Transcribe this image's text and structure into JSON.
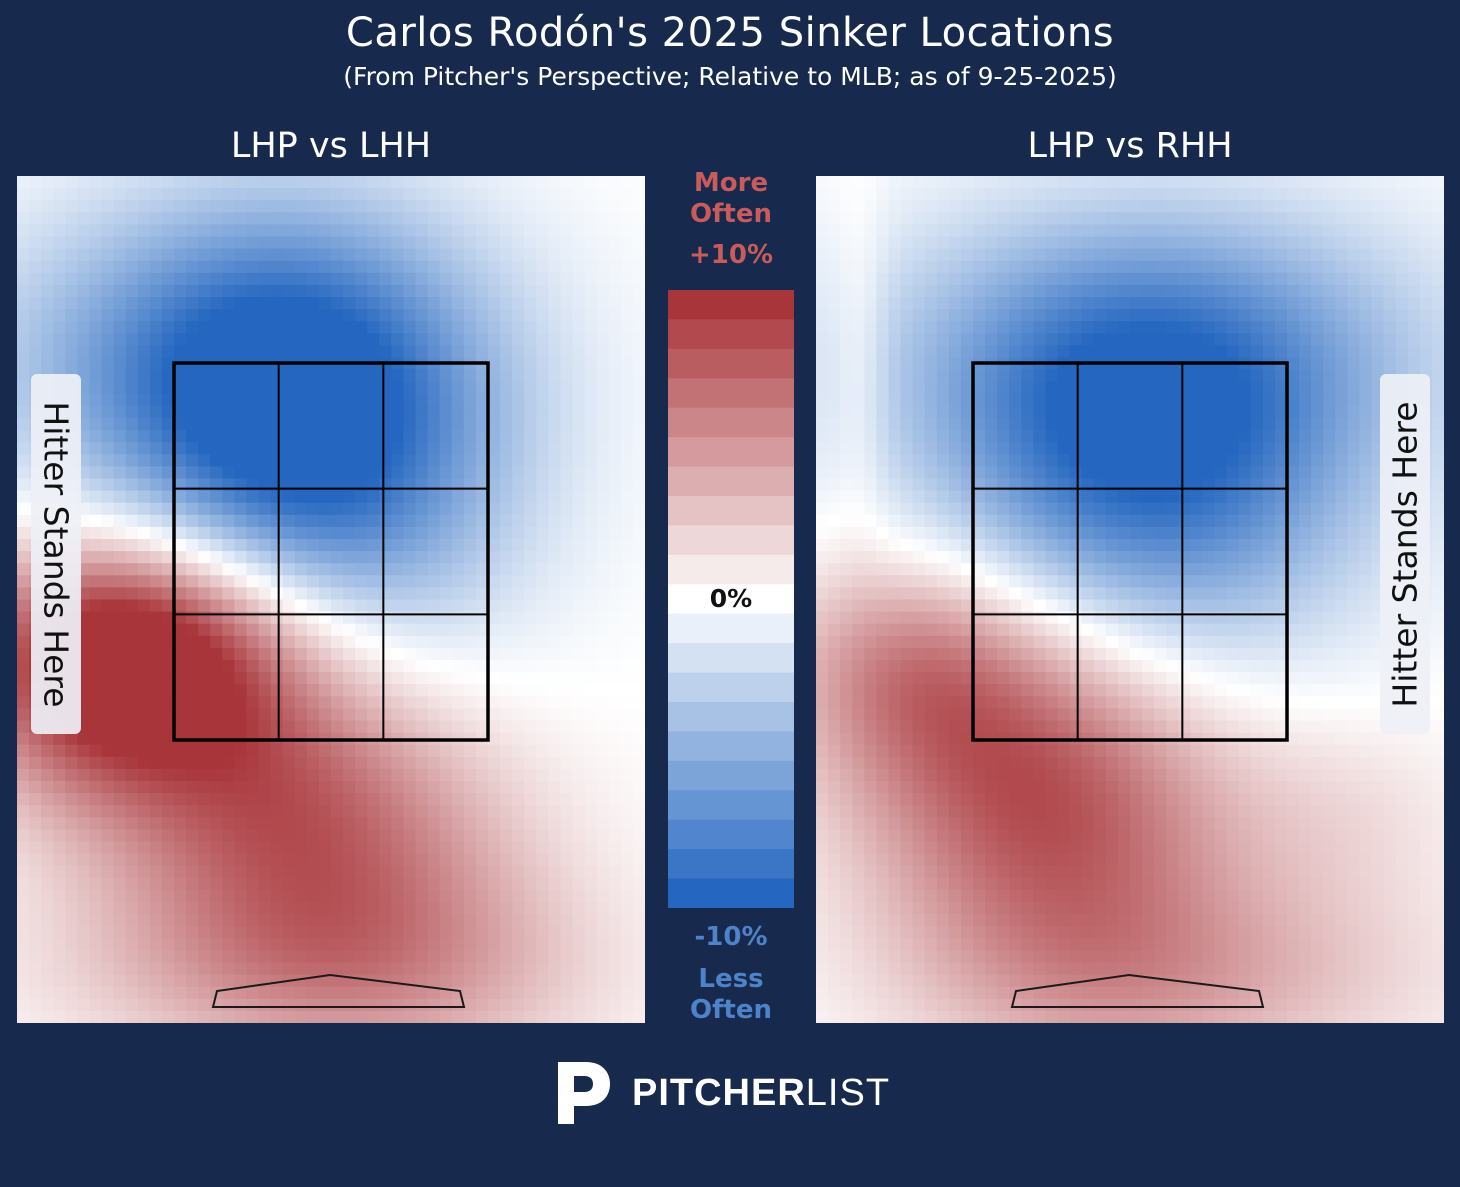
{
  "title": "Carlos Rodón's 2025 Sinker Locations",
  "subtitle": "(From Pitcher's Perspective; Relative to MLB; as of 9-25-2025)",
  "panels": [
    {
      "title": "LHP vs LHH",
      "hitter_label": "Hitter Stands Here",
      "hitter_side": "left"
    },
    {
      "title": "LHP vs RHH",
      "hitter_label": "Hitter Stands Here",
      "hitter_side": "right"
    }
  ],
  "legend": {
    "more_line1": "More",
    "more_line2": "Often",
    "max_label": "+10%",
    "mid_label": "0%",
    "min_label": "-10%",
    "less_line1": "Less",
    "less_line2": "Often",
    "range": [
      -10,
      10
    ],
    "colors": {
      "positive": "#a8353a",
      "neutral": "#ffffff",
      "negative": "#2567c0"
    }
  },
  "brand": {
    "bold": "PITCHER",
    "light": "LIST"
  },
  "chart_data": [
    {
      "type": "heatmap",
      "title": "LHP vs LHH",
      "value_range": [
        -10,
        10
      ],
      "unit": "%",
      "hot_zones": [
        {
          "x": 0.47,
          "y": 0.33,
          "sx": 0.21,
          "sy": 0.18,
          "value": -9,
          "rot": 0.15
        },
        {
          "x": 0.33,
          "y": 0.22,
          "sx": 0.28,
          "sy": 0.13,
          "value": -6
        },
        {
          "x": 0.42,
          "y": 0.74,
          "sx": 0.26,
          "sy": 0.15,
          "value": 9,
          "rot": 0.35
        },
        {
          "x": 0.22,
          "y": 0.55,
          "sx": 0.18,
          "sy": 0.09,
          "value": 8
        },
        {
          "x": 0.1,
          "y": 0.6,
          "sx": 0.14,
          "sy": 0.1,
          "value": 4
        },
        {
          "x": 0.45,
          "y": 0.94,
          "sx": 0.3,
          "sy": 0.08,
          "value": 3
        }
      ]
    },
    {
      "type": "heatmap",
      "title": "LHP vs RHH",
      "value_range": [
        -10,
        10
      ],
      "unit": "%",
      "hot_zones": [
        {
          "x": 0.52,
          "y": 0.35,
          "sx": 0.24,
          "sy": 0.16,
          "value": -9
        },
        {
          "x": 0.55,
          "y": 0.2,
          "sx": 0.32,
          "sy": 0.12,
          "value": -5
        },
        {
          "x": 0.36,
          "y": 0.73,
          "sx": 0.22,
          "sy": 0.16,
          "value": 9,
          "rot": 0.3
        },
        {
          "x": 0.15,
          "y": 0.58,
          "sx": 0.14,
          "sy": 0.09,
          "value": 4
        },
        {
          "x": 0.07,
          "y": 0.22,
          "sx": 0.03,
          "sy": 0.14,
          "value": 1.5
        },
        {
          "x": 0.85,
          "y": 0.76,
          "sx": 0.14,
          "sy": 0.09,
          "value": 1.5
        },
        {
          "x": 0.6,
          "y": 0.95,
          "sx": 0.3,
          "sy": 0.08,
          "value": 3
        }
      ]
    }
  ]
}
